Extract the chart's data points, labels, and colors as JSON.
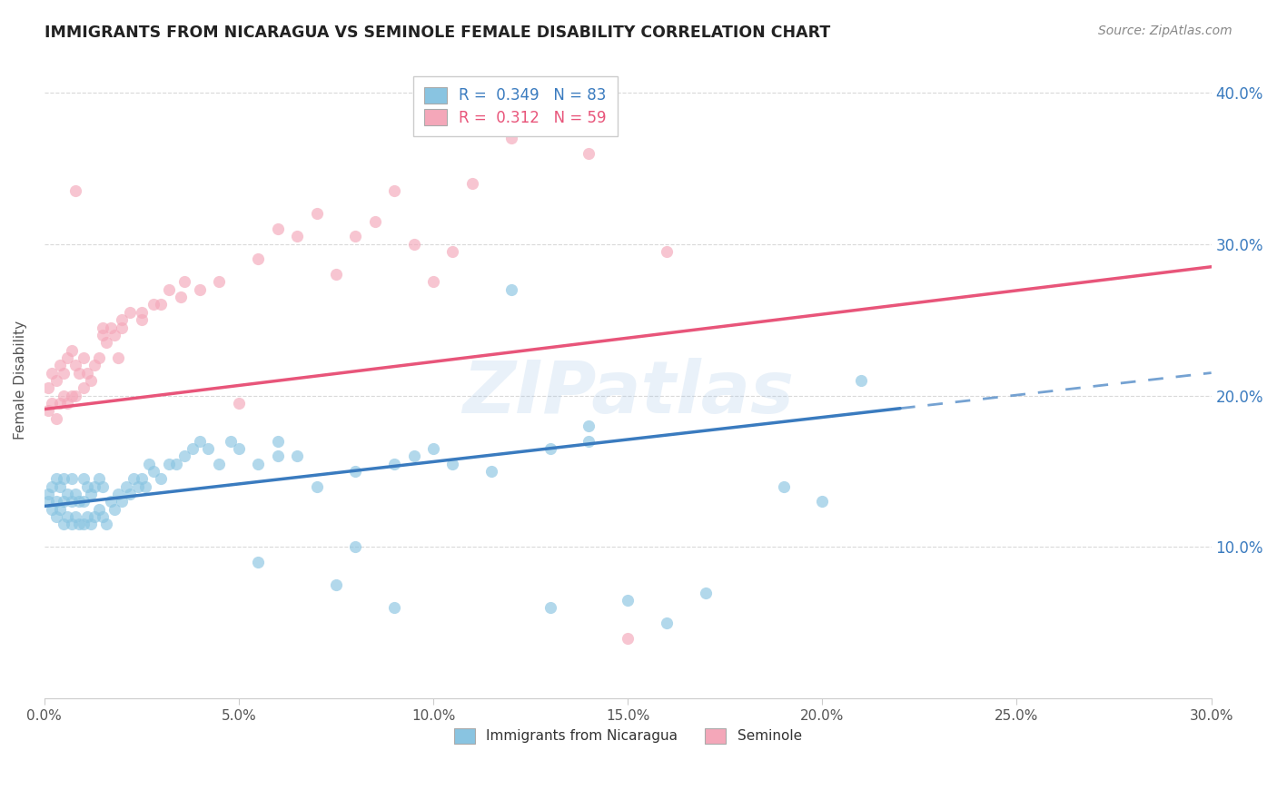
{
  "title": "IMMIGRANTS FROM NICARAGUA VS SEMINOLE FEMALE DISABILITY CORRELATION CHART",
  "source": "Source: ZipAtlas.com",
  "ylabel": "Female Disability",
  "xlim": [
    0.0,
    0.3
  ],
  "ylim": [
    0.0,
    0.42
  ],
  "xtick_labels": [
    "0.0%",
    "5.0%",
    "10.0%",
    "15.0%",
    "20.0%",
    "25.0%",
    "30.0%"
  ],
  "xtick_values": [
    0.0,
    0.05,
    0.1,
    0.15,
    0.2,
    0.25,
    0.3
  ],
  "ytick_labels": [
    "10.0%",
    "20.0%",
    "30.0%",
    "40.0%"
  ],
  "ytick_values": [
    0.1,
    0.2,
    0.3,
    0.4
  ],
  "blue_R": 0.349,
  "blue_N": 83,
  "pink_R": 0.312,
  "pink_N": 59,
  "blue_color": "#89c4e1",
  "pink_color": "#f4a7b9",
  "blue_line_color": "#3a7bbf",
  "pink_line_color": "#e8557a",
  "legend_label_blue": "Immigrants from Nicaragua",
  "legend_label_pink": "Seminole",
  "watermark": "ZIPatlas",
  "blue_scatter_x": [
    0.001,
    0.001,
    0.002,
    0.002,
    0.003,
    0.003,
    0.003,
    0.004,
    0.004,
    0.005,
    0.005,
    0.005,
    0.006,
    0.006,
    0.007,
    0.007,
    0.007,
    0.008,
    0.008,
    0.009,
    0.009,
    0.01,
    0.01,
    0.01,
    0.011,
    0.011,
    0.012,
    0.012,
    0.013,
    0.013,
    0.014,
    0.014,
    0.015,
    0.015,
    0.016,
    0.017,
    0.018,
    0.019,
    0.02,
    0.021,
    0.022,
    0.023,
    0.024,
    0.025,
    0.026,
    0.027,
    0.028,
    0.03,
    0.032,
    0.034,
    0.036,
    0.038,
    0.04,
    0.042,
    0.045,
    0.048,
    0.05,
    0.055,
    0.06,
    0.065,
    0.07,
    0.08,
    0.09,
    0.1,
    0.115,
    0.13,
    0.15,
    0.16,
    0.19,
    0.21,
    0.12,
    0.095,
    0.14,
    0.08,
    0.055,
    0.13,
    0.17,
    0.06,
    0.14,
    0.105,
    0.2,
    0.09,
    0.075
  ],
  "blue_scatter_y": [
    0.13,
    0.135,
    0.125,
    0.14,
    0.12,
    0.13,
    0.145,
    0.125,
    0.14,
    0.115,
    0.13,
    0.145,
    0.12,
    0.135,
    0.115,
    0.13,
    0.145,
    0.12,
    0.135,
    0.115,
    0.13,
    0.115,
    0.13,
    0.145,
    0.12,
    0.14,
    0.115,
    0.135,
    0.12,
    0.14,
    0.125,
    0.145,
    0.12,
    0.14,
    0.115,
    0.13,
    0.125,
    0.135,
    0.13,
    0.14,
    0.135,
    0.145,
    0.14,
    0.145,
    0.14,
    0.155,
    0.15,
    0.145,
    0.155,
    0.155,
    0.16,
    0.165,
    0.17,
    0.165,
    0.155,
    0.17,
    0.165,
    0.155,
    0.16,
    0.16,
    0.14,
    0.15,
    0.155,
    0.165,
    0.15,
    0.165,
    0.065,
    0.05,
    0.14,
    0.21,
    0.27,
    0.16,
    0.17,
    0.1,
    0.09,
    0.06,
    0.07,
    0.17,
    0.18,
    0.155,
    0.13,
    0.06,
    0.075
  ],
  "pink_scatter_x": [
    0.001,
    0.001,
    0.002,
    0.002,
    0.003,
    0.003,
    0.004,
    0.004,
    0.005,
    0.005,
    0.006,
    0.006,
    0.007,
    0.007,
    0.008,
    0.008,
    0.009,
    0.01,
    0.01,
    0.011,
    0.012,
    0.013,
    0.014,
    0.015,
    0.016,
    0.017,
    0.018,
    0.019,
    0.02,
    0.022,
    0.025,
    0.028,
    0.032,
    0.036,
    0.04,
    0.045,
    0.05,
    0.06,
    0.07,
    0.08,
    0.09,
    0.1,
    0.11,
    0.12,
    0.14,
    0.16,
    0.03,
    0.015,
    0.008,
    0.055,
    0.065,
    0.035,
    0.075,
    0.02,
    0.085,
    0.095,
    0.105,
    0.025,
    0.15
  ],
  "pink_scatter_y": [
    0.19,
    0.205,
    0.195,
    0.215,
    0.185,
    0.21,
    0.195,
    0.22,
    0.2,
    0.215,
    0.195,
    0.225,
    0.2,
    0.23,
    0.2,
    0.22,
    0.215,
    0.205,
    0.225,
    0.215,
    0.21,
    0.22,
    0.225,
    0.24,
    0.235,
    0.245,
    0.24,
    0.225,
    0.245,
    0.255,
    0.255,
    0.26,
    0.27,
    0.275,
    0.27,
    0.275,
    0.195,
    0.31,
    0.32,
    0.305,
    0.335,
    0.275,
    0.34,
    0.37,
    0.36,
    0.295,
    0.26,
    0.245,
    0.335,
    0.29,
    0.305,
    0.265,
    0.28,
    0.25,
    0.315,
    0.3,
    0.295,
    0.25,
    0.04
  ],
  "grid_color": "#d0d0d0",
  "background_color": "#ffffff",
  "blue_line_start_x": 0.0,
  "blue_line_start_y": 0.127,
  "blue_line_end_solid_x": 0.22,
  "blue_line_end_y": 0.215,
  "blue_line_end_x": 0.3,
  "pink_line_start_x": 0.0,
  "pink_line_start_y": 0.191,
  "pink_line_end_x": 0.3,
  "pink_line_end_y": 0.285
}
